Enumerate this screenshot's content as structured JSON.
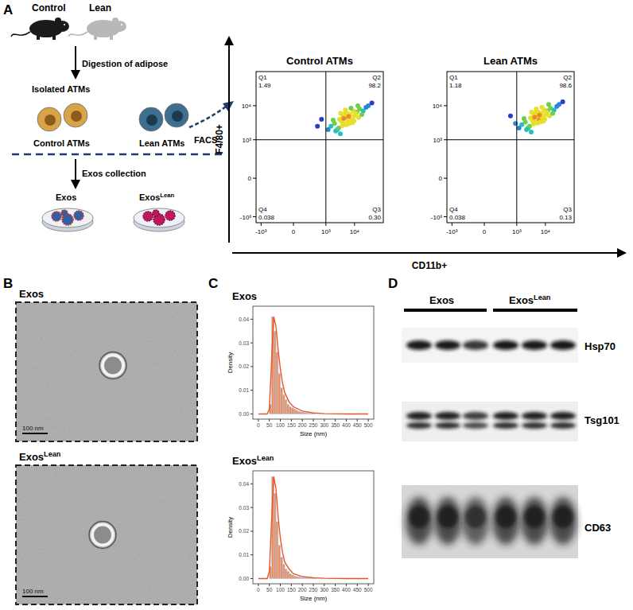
{
  "panels": {
    "a": {
      "label": "A",
      "mice": [
        "Control",
        "Lean"
      ],
      "step1": "Digestion of adipose",
      "isolated": "Isolated ATMs",
      "cells": [
        "Control ATMs",
        "Lean ATMs"
      ],
      "facs": "FACS",
      "step2": "Exos collection",
      "dishes": [
        "Exos",
        {
          "text": "Exos",
          "sup": "Lean"
        }
      ],
      "y_axis": "F4/80+",
      "x_axis": "CD11b+"
    },
    "b": {
      "label": "B",
      "images": [
        {
          "title": "Exos",
          "scale": "100 nm"
        },
        {
          "title": {
            "text": "Exos",
            "sup": "Lean"
          },
          "scale": "100 nm"
        }
      ]
    },
    "c": {
      "label": "C"
    },
    "d": {
      "label": "D",
      "groups": [
        "Exos",
        {
          "text": "Exos",
          "sup": "Lean"
        }
      ],
      "proteins": [
        "Hsp70",
        "Tsg101",
        "CD63"
      ]
    }
  },
  "chart_data": [
    {
      "type": "scatter",
      "title": "Control ATMs",
      "x": [
        1500,
        2000,
        2500,
        3000,
        3500,
        4000,
        4500,
        5000,
        5500,
        6000,
        7000,
        8000,
        9000,
        10000,
        12000,
        15000,
        20000,
        25000,
        30000,
        2200,
        2800,
        3300,
        3800,
        4200,
        4800,
        5200,
        6500,
        7500,
        8500,
        11000,
        14000,
        18000,
        1800,
        3200,
        4600,
        6200,
        9500,
        13000,
        1200,
        40000,
        700,
        500
      ],
      "values": [
        2500,
        3000,
        2000,
        4000,
        3500,
        5000,
        3000,
        4500,
        6000,
        3500,
        5500,
        4000,
        7000,
        5000,
        6500,
        8000,
        7000,
        9000,
        10000,
        1800,
        2200,
        6000,
        2600,
        4200,
        7500,
        2800,
        3000,
        8500,
        3200,
        6000,
        4500,
        5500,
        3800,
        1500,
        5800,
        4800,
        3600,
        10000,
        2000,
        12000,
        4000,
        2500
      ],
      "xlim": [
        -1500,
        100000
      ],
      "ylim": [
        -1500,
        100000
      ],
      "xticks": [
        {
          "value": -1000,
          "label": "-10³"
        },
        0,
        {
          "value": 1000,
          "label": "10³"
        },
        {
          "value": 10000,
          "label": "10⁴"
        }
      ],
      "yticks": [
        {
          "value": -1000,
          "label": "-10³"
        },
        0,
        {
          "value": 1000,
          "label": "10³"
        },
        {
          "value": 10000,
          "label": "10⁴"
        }
      ],
      "gates": {
        "x": 1000,
        "y": 1000
      },
      "quadrants": {
        "labels": [
          "Q1",
          "Q2",
          "Q3",
          "Q4"
        ],
        "values": [
          1.49,
          98.2,
          0.3,
          0.038
        ],
        "value_labels": [
          "1.49",
          "98.2",
          "0.30",
          "0.038"
        ]
      }
    },
    {
      "type": "scatter",
      "title": "Lean ATMs",
      "x": [
        1500,
        2000,
        2500,
        3000,
        3500,
        4000,
        4500,
        5000,
        5500,
        6000,
        7000,
        8000,
        9000,
        10000,
        12000,
        15000,
        20000,
        25000,
        30000,
        2200,
        2800,
        3300,
        3800,
        4200,
        4800,
        5200,
        6500,
        7500,
        8500,
        11000,
        14000,
        18000,
        1800,
        3200,
        4600,
        6200,
        9500,
        13000,
        1200,
        40000,
        600,
        900
      ],
      "values": [
        2800,
        3300,
        2200,
        4400,
        3800,
        5500,
        3300,
        5000,
        6500,
        3800,
        6000,
        4400,
        7500,
        5500,
        7000,
        8500,
        7500,
        9500,
        11000,
        2000,
        2500,
        6500,
        2900,
        4600,
        8000,
        3100,
        3300,
        9000,
        3500,
        6500,
        5000,
        6000,
        4200,
        1700,
        6300,
        5300,
        4000,
        11000,
        2200,
        13000,
        5000,
        3000
      ],
      "xlim": [
        -1500,
        100000
      ],
      "ylim": [
        -1500,
        100000
      ],
      "xticks": [
        {
          "value": -1000,
          "label": "-10³"
        },
        0,
        {
          "value": 1000,
          "label": "10³"
        },
        {
          "value": 10000,
          "label": "10⁴"
        }
      ],
      "yticks": [
        {
          "value": -1000,
          "label": "-10³"
        },
        0,
        {
          "value": 1000,
          "label": "10³"
        },
        {
          "value": 10000,
          "label": "10⁴"
        }
      ],
      "gates": {
        "x": 1000,
        "y": 1000
      },
      "quadrants": {
        "labels": [
          "Q1",
          "Q2",
          "Q3",
          "Q4"
        ],
        "values": [
          1.18,
          98.6,
          0.13,
          0.038
        ],
        "value_labels": [
          "1.18",
          "98.6",
          "0.13",
          "0.038"
        ]
      }
    },
    {
      "type": "histogram",
      "title": "Exos",
      "x_label": "Size (nm)",
      "y_label": "Density",
      "color": "#f28c5a",
      "bins": [
        50,
        60,
        70,
        80,
        90,
        100,
        110,
        120,
        130,
        140,
        150,
        160,
        170,
        180,
        190,
        200,
        210,
        220,
        230,
        240,
        250,
        260
      ],
      "values": [
        0.004,
        0.041,
        0.035,
        0.026,
        0.017,
        0.011,
        0.008,
        0.006,
        0.004,
        0.003,
        0.0025,
        0.002,
        0.0015,
        0.001,
        0.0008,
        0.0006,
        0.0005,
        0.0003,
        0.0002,
        0.0002,
        0.0001
      ],
      "curve": {
        "type": "line",
        "color": "#e8552a",
        "x": [
          0,
          40,
          50,
          60,
          70,
          80,
          90,
          100,
          110,
          120,
          140,
          160,
          200,
          250,
          300,
          400,
          500
        ],
        "values": [
          0,
          0,
          0.002,
          0.022,
          0.041,
          0.037,
          0.027,
          0.019,
          0.013,
          0.009,
          0.005,
          0.003,
          0.0012,
          0.0004,
          0.0001,
          0,
          0
        ]
      },
      "xlim": [
        -25,
        525
      ],
      "ylim": [
        -0.0022,
        0.0455
      ],
      "xticks": [
        0,
        50,
        100,
        150,
        200,
        250,
        300,
        350,
        400,
        450,
        500
      ],
      "yticks": [
        {
          "value": 0,
          "label": "0.00"
        },
        {
          "value": 0.01,
          "label": "0.01"
        },
        {
          "value": 0.02,
          "label": "0.02"
        },
        {
          "value": 0.03,
          "label": "0.03"
        },
        {
          "value": 0.04,
          "label": "0.04"
        }
      ],
      "grid": false
    },
    {
      "type": "histogram",
      "title": {
        "text": "Exos",
        "sup": "Lean"
      },
      "x_label": "Size (nm)",
      "y_label": "Density",
      "color": "#f28c5a",
      "bins": [
        50,
        60,
        70,
        80,
        90,
        100,
        110,
        120,
        130,
        140,
        150,
        160,
        170,
        180,
        190,
        200,
        210,
        220,
        230,
        240,
        250,
        260
      ],
      "values": [
        0.005,
        0.043,
        0.036,
        0.024,
        0.014,
        0.009,
        0.006,
        0.004,
        0.003,
        0.002,
        0.0015,
        0.001,
        0.0008,
        0.0006,
        0.0004,
        0.0003,
        0.0002,
        0.0002,
        0.0001,
        0.0001,
        0.0001
      ],
      "curve": {
        "type": "line",
        "color": "#e8552a",
        "x": [
          0,
          40,
          50,
          60,
          70,
          80,
          90,
          100,
          110,
          120,
          140,
          160,
          200,
          250,
          300,
          400,
          500
        ],
        "values": [
          0,
          0,
          0.003,
          0.024,
          0.043,
          0.038,
          0.026,
          0.017,
          0.011,
          0.007,
          0.004,
          0.002,
          0.0008,
          0.0003,
          0.0001,
          0,
          0
        ]
      },
      "xlim": [
        -25,
        525
      ],
      "ylim": [
        -0.0022,
        0.0455
      ],
      "xticks": [
        0,
        50,
        100,
        150,
        200,
        250,
        300,
        350,
        400,
        450,
        500
      ],
      "yticks": [
        {
          "value": 0,
          "label": "0.00"
        },
        {
          "value": 0.01,
          "label": "0.01"
        },
        {
          "value": 0.02,
          "label": "0.02"
        },
        {
          "value": 0.03,
          "label": "0.03"
        },
        {
          "value": 0.04,
          "label": "0.04"
        }
      ],
      "grid": false
    }
  ]
}
